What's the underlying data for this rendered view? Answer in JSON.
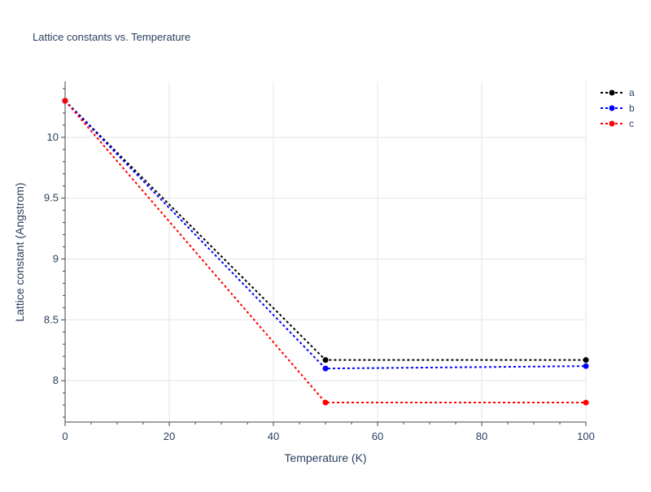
{
  "chart_data": {
    "type": "line",
    "title": "Lattice constants vs. Temperature",
    "xlabel": "Temperature (K)",
    "ylabel": "Lattice constant (Angstrom)",
    "xlim": [
      0,
      100
    ],
    "ylim": [
      7.66,
      10.46
    ],
    "x_ticks": [
      0,
      20,
      40,
      60,
      80,
      100
    ],
    "y_ticks": [
      8,
      8.5,
      9,
      9.5,
      10
    ],
    "grid": true,
    "legend_position": "top-right",
    "x": [
      0,
      50,
      100
    ],
    "series": [
      {
        "name": "a",
        "color": "#000000",
        "values": [
          10.3,
          8.17,
          8.17
        ]
      },
      {
        "name": "b",
        "color": "#0000ff",
        "values": [
          10.3,
          8.1,
          8.12
        ]
      },
      {
        "name": "c",
        "color": "#ff0000",
        "values": [
          10.3,
          7.82,
          7.82
        ]
      }
    ]
  }
}
